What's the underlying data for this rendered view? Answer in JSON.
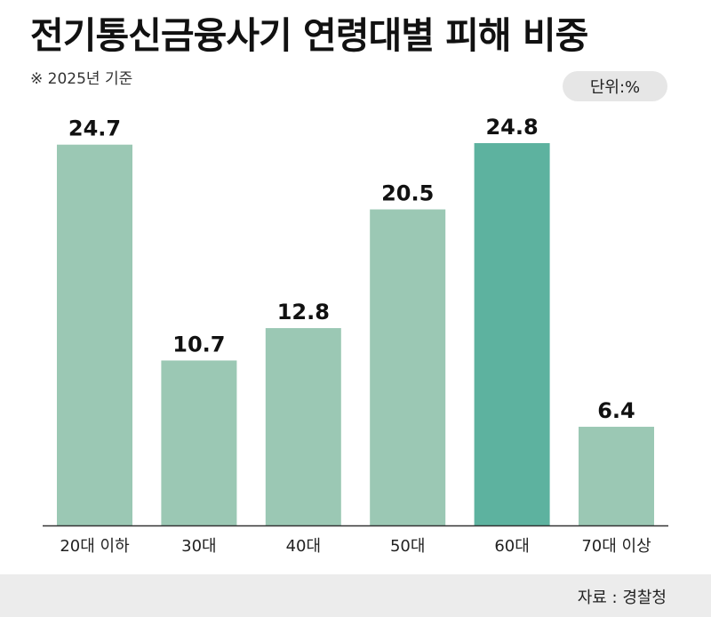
{
  "title": "전기통신금융사기 연령대별 피해 비중",
  "note": "※ 2025년 기준",
  "unit": "단위:%",
  "source": "자료 : 경찰청",
  "colors": {
    "bar": "#9bc8b4",
    "highlight": "#5db29f",
    "axis": "#333333"
  },
  "chart_data": {
    "type": "bar",
    "title": "전기통신금융사기 연령대별 피해 비중",
    "categories": [
      "20대 이하",
      "30대",
      "40대",
      "50대",
      "60대",
      "70대 이상"
    ],
    "values": [
      24.7,
      10.7,
      12.8,
      20.5,
      24.8,
      6.4
    ],
    "value_labels": [
      "24.7",
      "10.7",
      "12.8",
      "20.5",
      "24.8",
      "6.4"
    ],
    "highlight_index": 4,
    "ylim": [
      0,
      25
    ],
    "grid": false,
    "legend": "none"
  }
}
